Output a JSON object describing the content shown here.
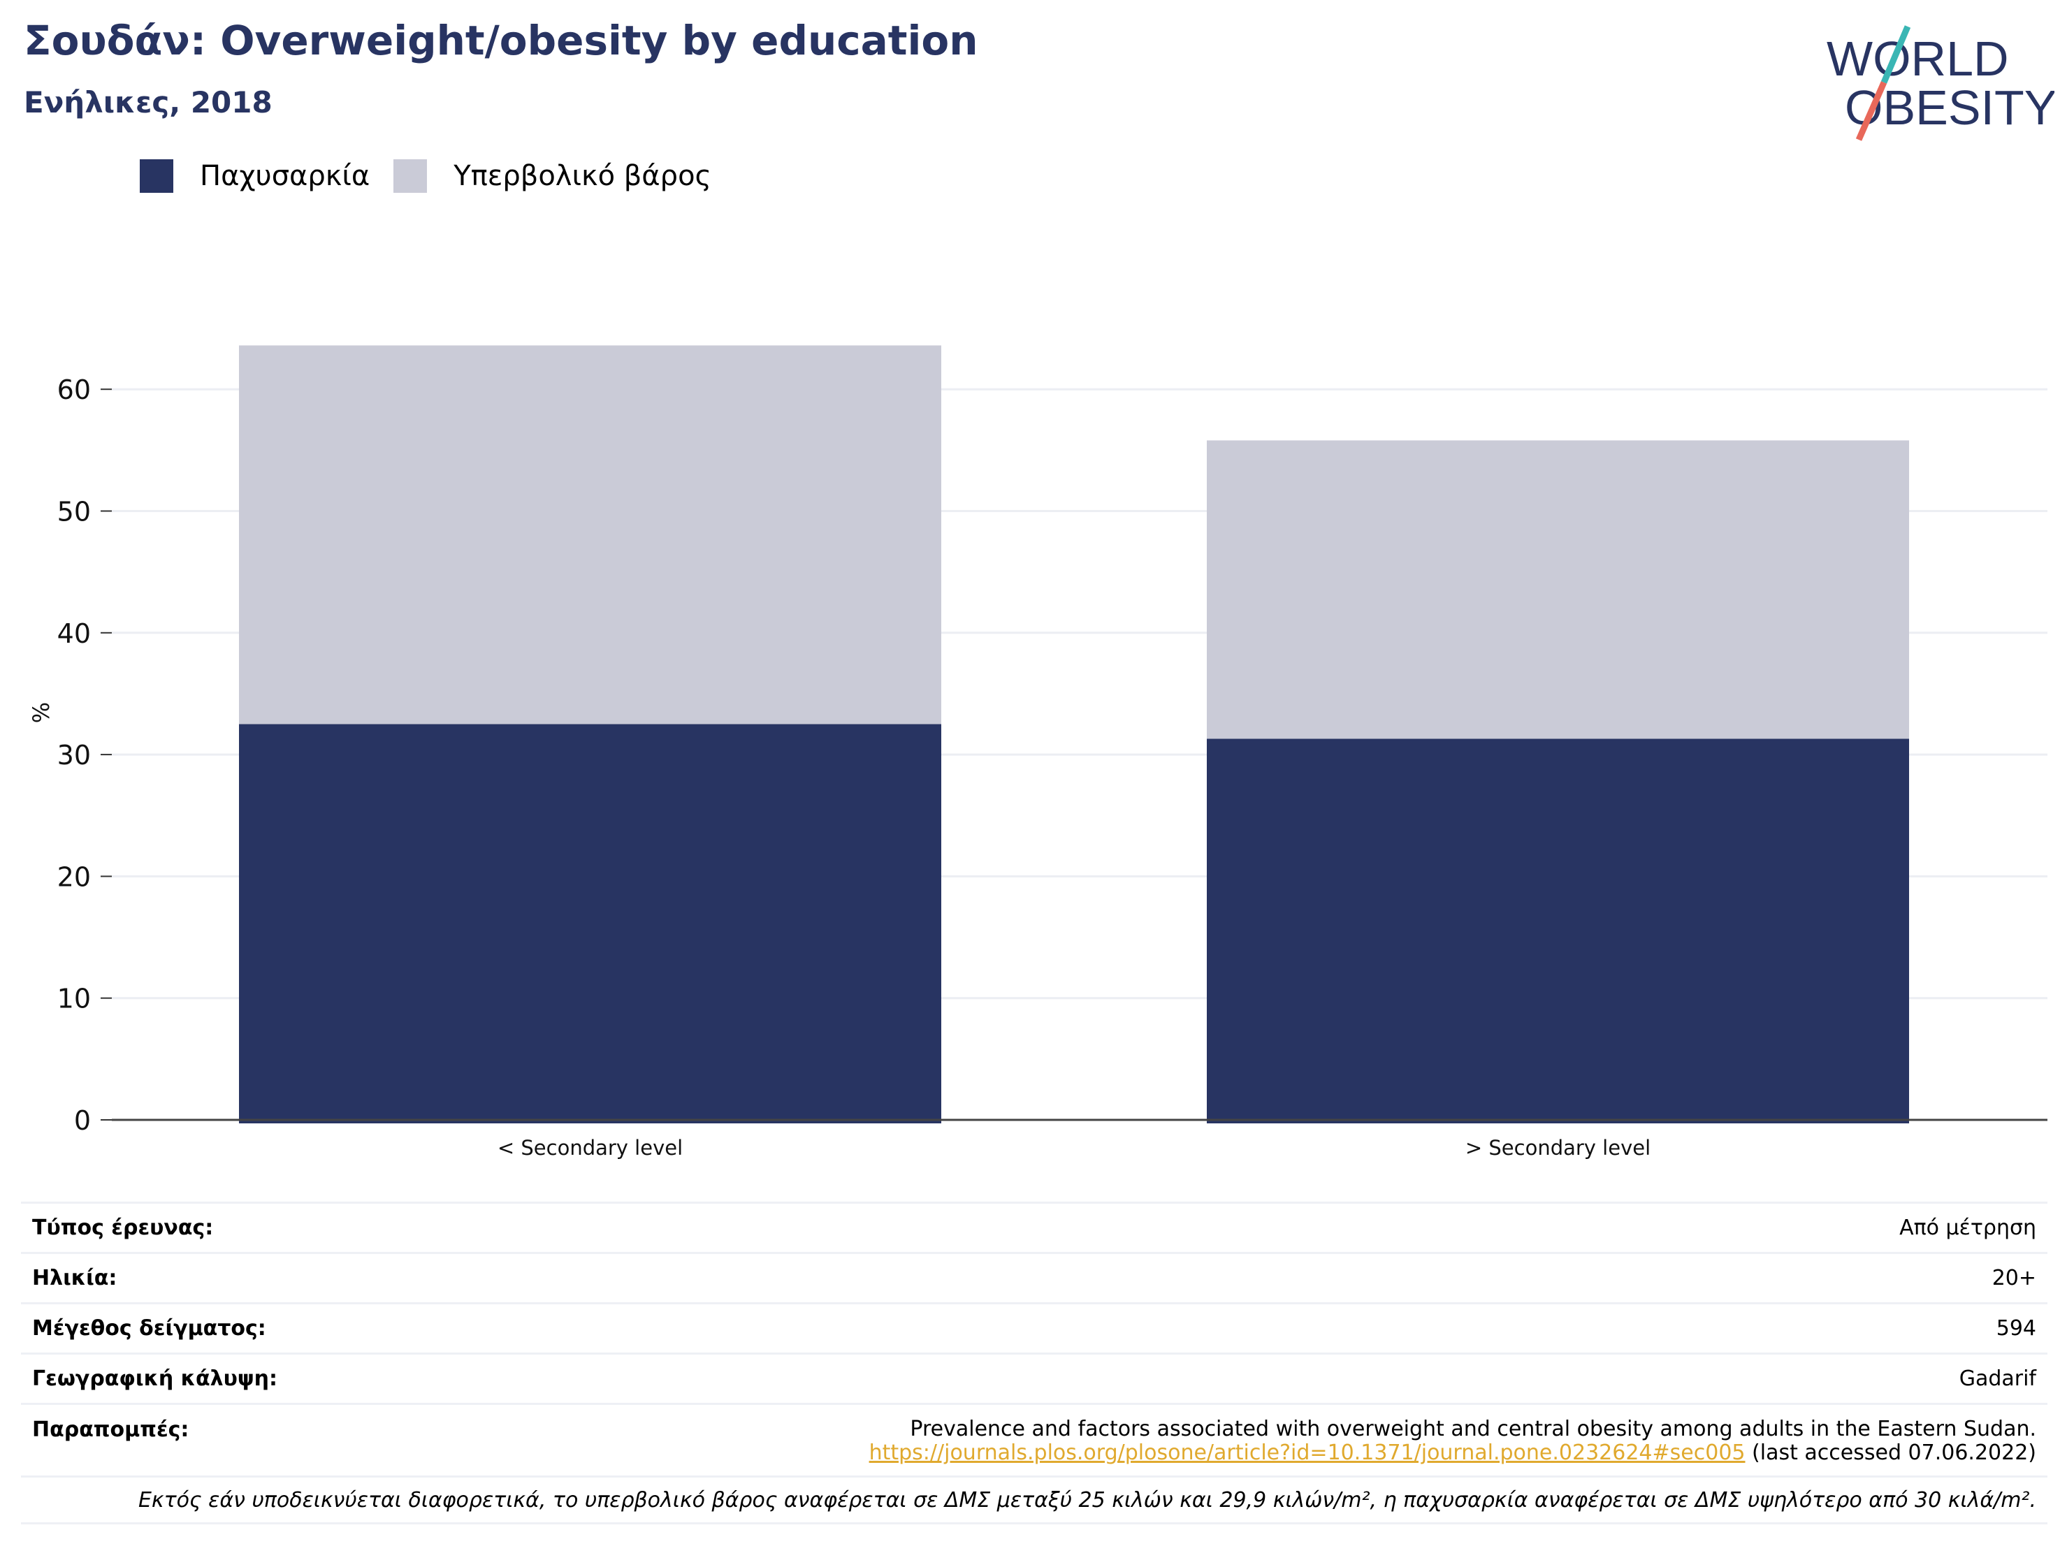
{
  "header": {
    "title": "Σουδάν: Overweight/obesity by education",
    "subtitle": "Ενήλικες, 2018"
  },
  "logo": {
    "line1": "WORLD",
    "line2": "OBESITY"
  },
  "colors": {
    "obesity": "#283462",
    "overweight": "#cacbd7",
    "accent_teal": "#3ab6b4",
    "accent_red": "#e8685a",
    "link": "#e0a92e"
  },
  "chart_data": {
    "type": "bar",
    "stacked": true,
    "categories": [
      "< Secondary level",
      "> Secondary level"
    ],
    "series": [
      {
        "name": "Παχυσαρκία",
        "values": [
          32.5,
          31.3
        ]
      },
      {
        "name": "Υπερβολικό βάρος",
        "values": [
          31.1,
          24.5
        ]
      }
    ],
    "ylabel": "%",
    "ylim": [
      0,
      70
    ],
    "yticks": [
      0,
      10,
      20,
      30,
      40,
      50,
      60
    ],
    "grid": true,
    "legend": "top-left"
  },
  "info": {
    "survey_type": {
      "label": "Τύπος έρευνας:",
      "value": "Από μέτρηση"
    },
    "age": {
      "label": "Ηλικία:",
      "value": "20+"
    },
    "sample_size": {
      "label": "Μέγεθος δείγματος:",
      "value": "594"
    },
    "coverage": {
      "label": "Γεωγραφική κάλυψη:",
      "value": "Gadarif"
    },
    "references": {
      "label": "Παραπομπές:",
      "text": "Prevalence and factors associated with overweight and central obesity among adults in the Eastern Sudan.",
      "link": "https://journals.plos.org/plosone/article?id=10.1371/journal.pone.0232624#sec005",
      "accessed": "(last accessed 07.06.2022)"
    },
    "note": "Εκτός εάν υποδεικνύεται διαφορετικά, το υπερβολικό βάρος αναφέρεται σε ΔΜΣ μεταξύ 25 κιλών και 29,9 κιλών/m², η παχυσαρκία αναφέρεται σε ΔΜΣ υψηλότερο από 30 κιλά/m²."
  }
}
